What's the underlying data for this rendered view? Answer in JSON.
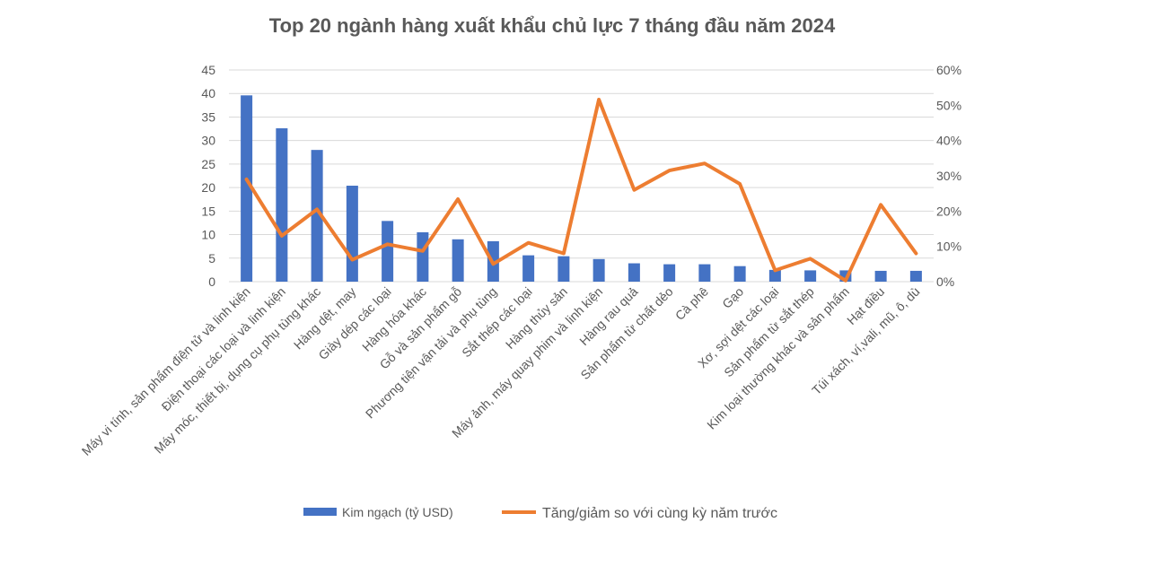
{
  "chart_data": {
    "type": "bar",
    "title": "Top 20 ngành hàng xuất khẩu chủ lực 7 tháng đầu năm 2024",
    "categories": [
      "Máy vi tính, sản phẩm điện tử và linh kiện",
      "Điện thoại các loại và linh kiện",
      "Máy móc, thiết bị, dụng cụ phụ tùng khác",
      "Hàng dệt, may",
      "Giày dép các loại",
      "Hàng hóa khác",
      "Gỗ và sản phẩm gỗ",
      "Phương tiện vận tải và phụ tùng",
      "Sắt thép các loại",
      "Hàng thủy sản",
      "Máy ảnh, máy quay phim và linh kiện",
      "Hàng rau quả",
      "Sản phẩm từ chất dẻo",
      "Cà phê",
      "Gạo",
      "Xơ, sợi dệt các loại",
      "Sản phẩm từ sắt thép",
      "Kim loại thường khác và sản phẩm",
      "Hạt điều",
      "Túi xách, ví,vali, mũ, ô, dù"
    ],
    "series": [
      {
        "name": "Kim ngạch (tỷ USD)",
        "type": "bar",
        "axis": "left",
        "color": "#4472c4",
        "values": [
          39.6,
          32.6,
          28.0,
          20.4,
          12.9,
          10.5,
          9.0,
          8.6,
          5.6,
          5.4,
          4.8,
          3.9,
          3.7,
          3.7,
          3.3,
          2.5,
          2.4,
          2.4,
          2.3,
          2.3
        ]
      },
      {
        "name": "Tăng/giảm so với cùng kỳ năm trước",
        "type": "line",
        "axis": "right",
        "color": "#ed7d31",
        "values": [
          29,
          13,
          20.5,
          6.2,
          10.6,
          8.7,
          23.4,
          5,
          11,
          8,
          51.6,
          26,
          31.5,
          33.5,
          27.7,
          3.2,
          6.5,
          0.3,
          21.8,
          8
        ]
      }
    ],
    "y_left": {
      "min": 0,
      "max": 45,
      "step": 5,
      "ticks": [
        "0",
        "5",
        "10",
        "15",
        "20",
        "25",
        "30",
        "35",
        "40",
        "45"
      ]
    },
    "y_right": {
      "min": 0,
      "max": 60,
      "step": 10,
      "ticks": [
        "0%",
        "10%",
        "20%",
        "30%",
        "40%",
        "50%",
        "60%"
      ]
    },
    "grid": true,
    "legend": "bottom"
  }
}
